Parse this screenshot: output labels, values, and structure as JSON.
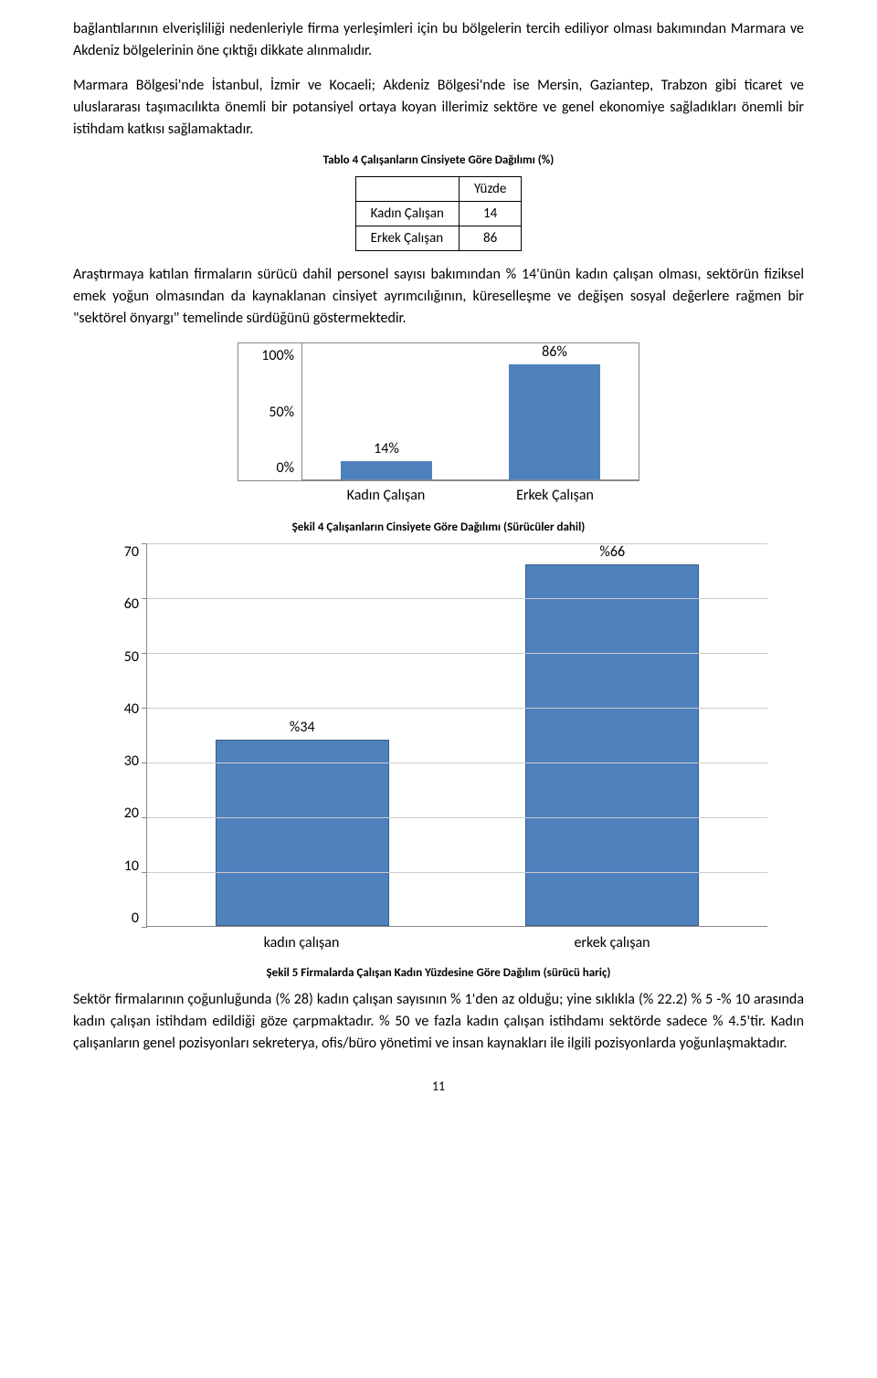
{
  "para1": "bağlantılarının elverişliliği nedenleriyle firma yerleşimleri için bu bölgelerin tercih ediliyor olması bakımından Marmara ve Akdeniz bölgelerinin öne çıktığı dikkate alınmalıdır.",
  "para2": "Marmara Bölgesi'nde İstanbul, İzmir ve Kocaeli; Akdeniz Bölgesi'nde ise Mersin, Gaziantep, Trabzon gibi ticaret ve uluslararası taşımacılıkta önemli bir potansiyel ortaya koyan illerimiz sektöre ve genel ekonomiye sağladıkları önemli bir istihdam katkısı sağlamaktadır.",
  "table4": {
    "caption": "Tablo 4 Çalışanların Cinsiyete Göre Dağılımı (%)",
    "header_col": "Yüzde",
    "rows": [
      {
        "label": "Kadın Çalışan",
        "value": "14"
      },
      {
        "label": "Erkek Çalışan",
        "value": "86"
      }
    ]
  },
  "para3": "Araştırmaya katılan firmaların sürücü dahil personel sayısı bakımından % 14'ünün kadın çalışan olması, sektörün fiziksel emek yoğun olmasından da kaynaklanan cinsiyet ayrımcılığının, küreselleşme ve değişen sosyal değerlere rağmen bir \"sektörel önyargı\" temelinde sürdüğünü göstermektedir.",
  "chart1": {
    "caption": "Şekil 4 Çalışanların Cinsiyete Göre Dağılımı (Sürücüler dahil)",
    "yticks": [
      "100%",
      "50%",
      "0%"
    ],
    "ymax": 100,
    "bar_color": "#4f81bd",
    "bars": [
      {
        "label": "Kadın Çalışan",
        "value": 14,
        "text": "14%"
      },
      {
        "label": "Erkek Çalışan",
        "value": 86,
        "text": "86%"
      }
    ]
  },
  "chart2": {
    "caption": "Şekil 5 Firmalarda Çalışan Kadın Yüzdesine Göre Dağılım (sürücü hariç)",
    "yticks": [
      "70",
      "60",
      "50",
      "40",
      "30",
      "20",
      "10",
      "0"
    ],
    "ymax": 70,
    "bar_color": "#4f81bd",
    "grid_color": "#cccccc",
    "bars": [
      {
        "label": "kadın çalışan",
        "value": 34,
        "text": "%34"
      },
      {
        "label": "erkek çalışan",
        "value": 66,
        "text": "%66"
      }
    ]
  },
  "para4": "Sektör firmalarının çoğunluğunda (% 28) kadın çalışan sayısının % 1'den az olduğu; yine sıklıkla (% 22.2) % 5 -% 10 arasında kadın çalışan istihdam edildiği göze çarpmaktadır. % 50 ve fazla kadın çalışan istihdamı sektörde sadece % 4.5'tir. Kadın çalışanların genel pozisyonları sekreterya, ofis/büro yönetimi ve insan kaynakları ile ilgili pozisyonlarda yoğunlaşmaktadır.",
  "page_number": "11"
}
